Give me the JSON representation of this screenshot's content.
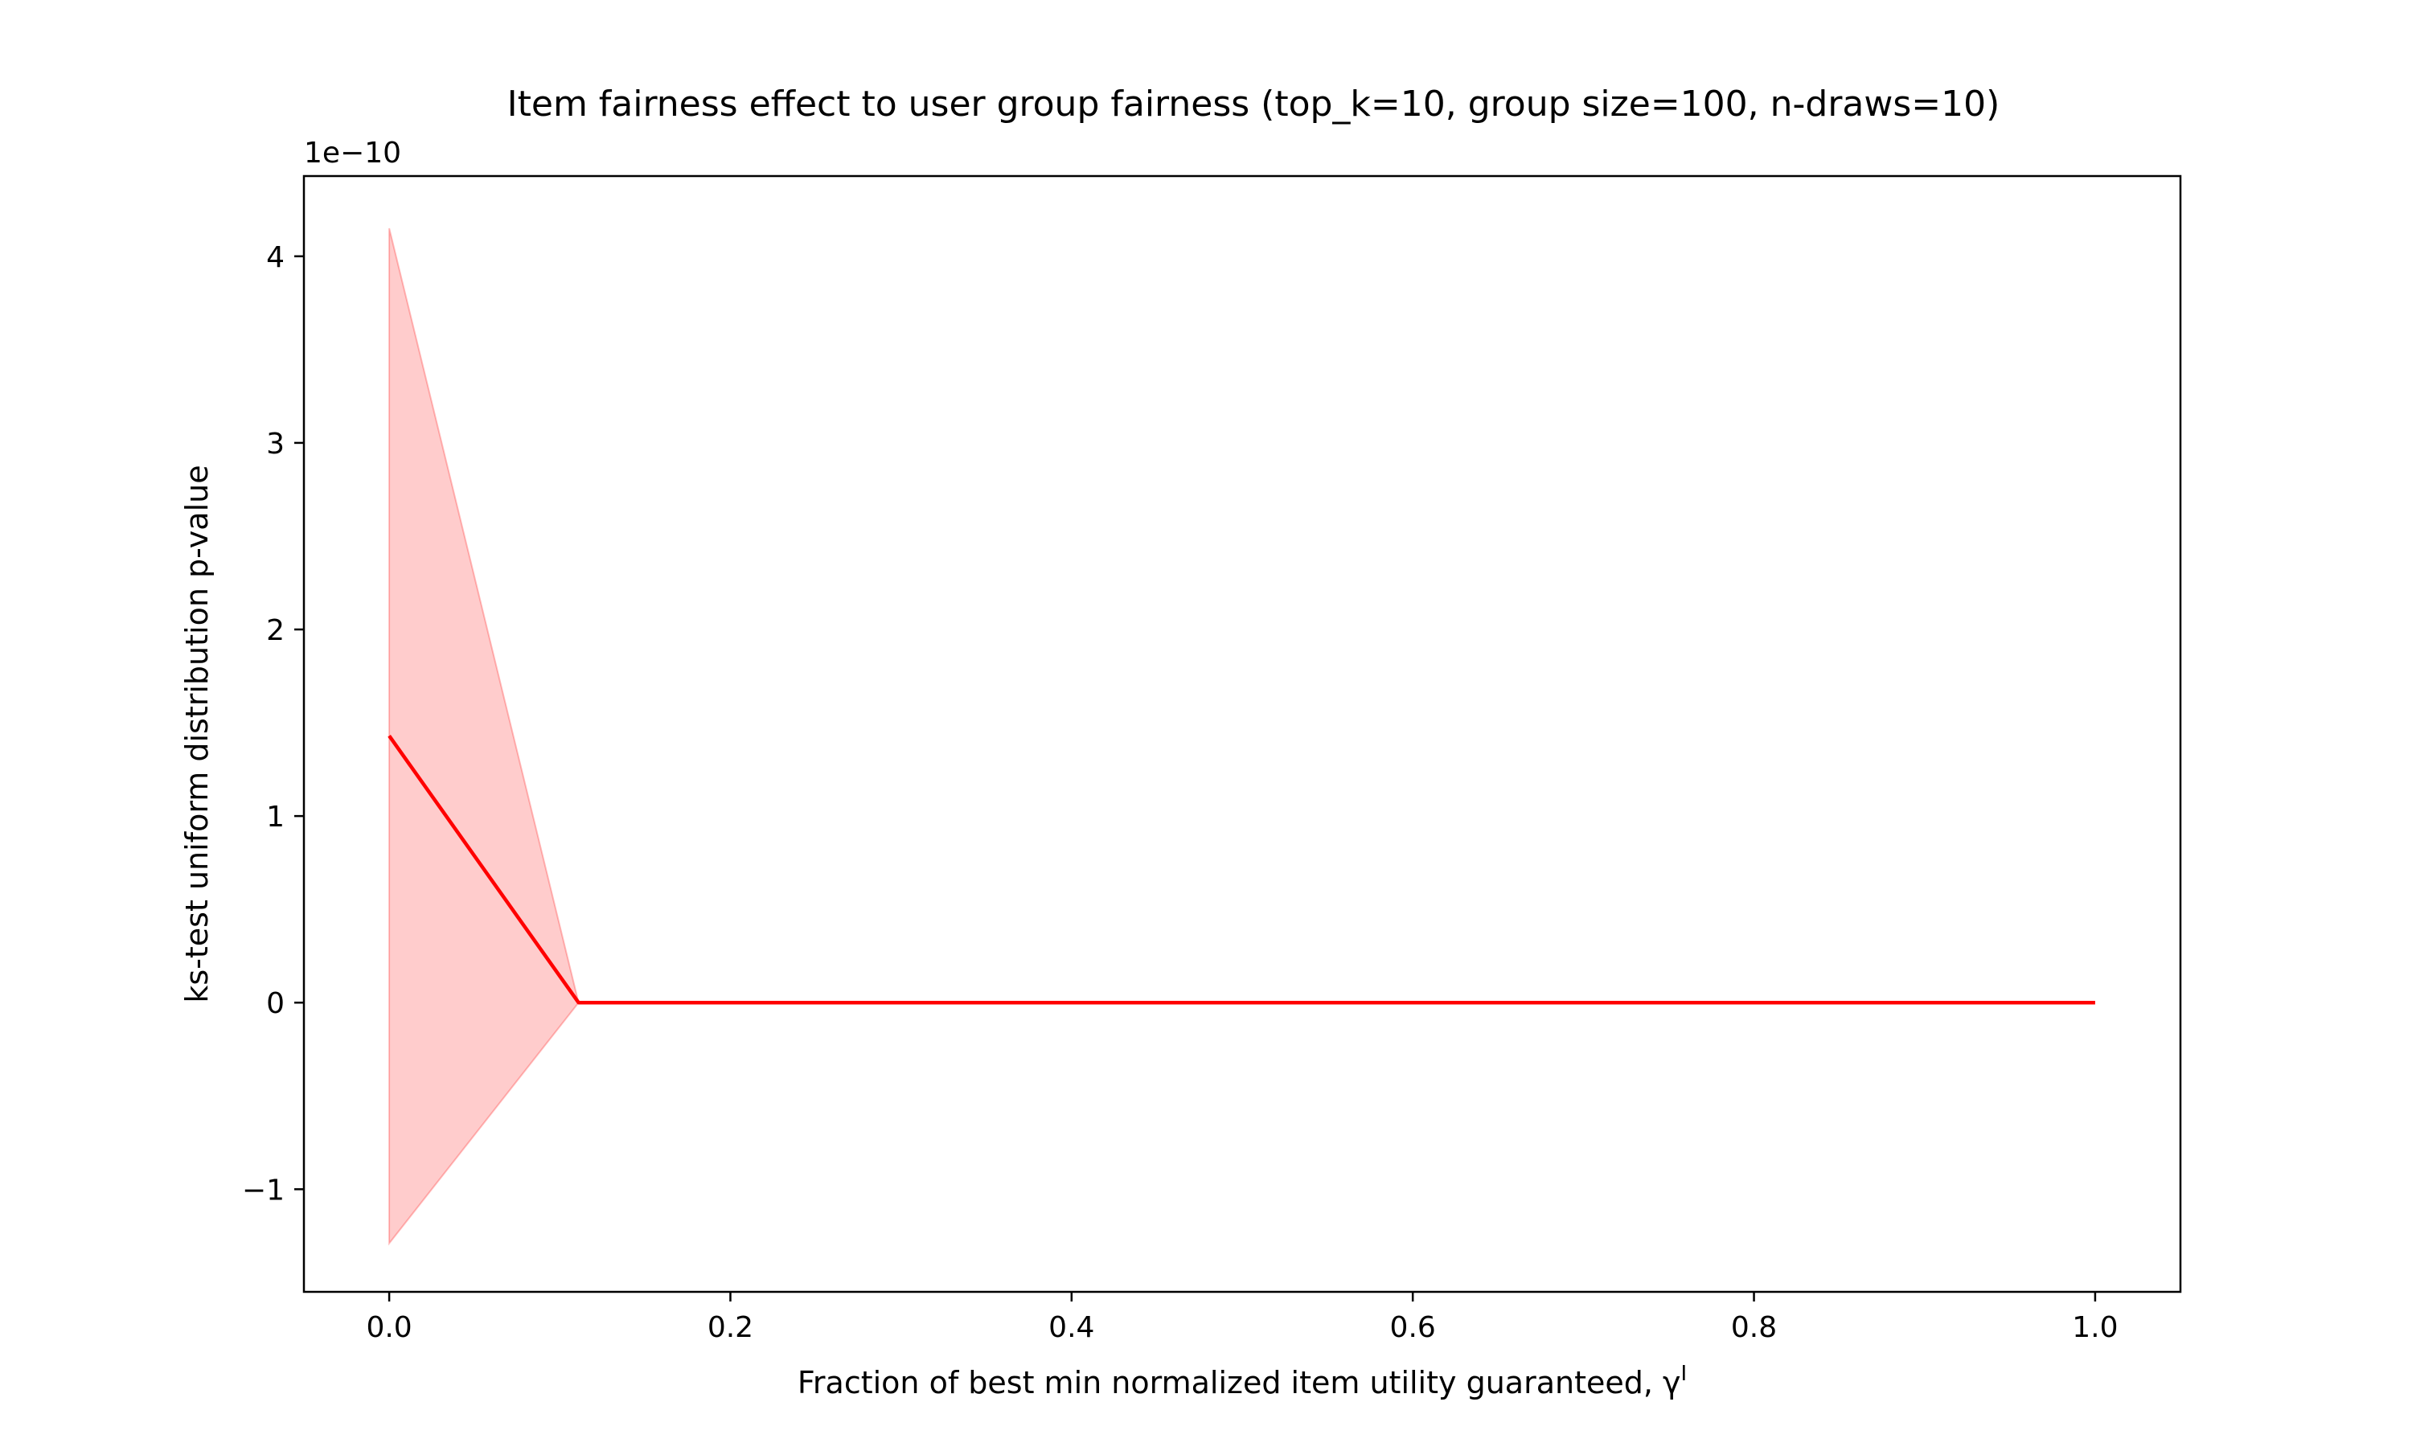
{
  "chart_data": {
    "type": "line",
    "title": "Item fairness effect to user group fairness (top_k=10, group size=100, n-draws=10)",
    "xlabel": "Fraction of best min normalized item utility guaranteed, γ",
    "xlabel_superscript": "I",
    "ylabel": "ks-test uniform distribution p-value",
    "y_offset_text": "1e−10",
    "x_ticks": [
      0.0,
      0.2,
      0.4,
      0.6,
      0.8,
      1.0
    ],
    "x_tick_labels": [
      "0.0",
      "0.2",
      "0.4",
      "0.6",
      "0.8",
      "1.0"
    ],
    "y_ticks": [
      -1,
      0,
      1,
      2,
      3,
      4
    ],
    "y_tick_labels": [
      "−1",
      "0",
      "1",
      "2",
      "3",
      "4"
    ],
    "xlim": [
      -0.05,
      1.05
    ],
    "ylim": [
      -1.55,
      4.43
    ],
    "grid": false,
    "colors": {
      "line": "#ff0000",
      "band": "#ff0000",
      "band_opacity": 0.2
    },
    "series": [
      {
        "x": [
          0.0,
          0.111,
          0.222,
          0.333,
          0.444,
          0.556,
          0.667,
          0.778,
          0.889,
          1.0
        ],
        "values": [
          1.43,
          0,
          0,
          0,
          0,
          0,
          0,
          0,
          0,
          0
        ],
        "lower": [
          -1.29,
          0,
          0,
          0,
          0,
          0,
          0,
          0,
          0,
          0
        ],
        "upper": [
          4.15,
          0,
          0,
          0,
          0,
          0,
          0,
          0,
          0,
          0
        ]
      }
    ]
  }
}
